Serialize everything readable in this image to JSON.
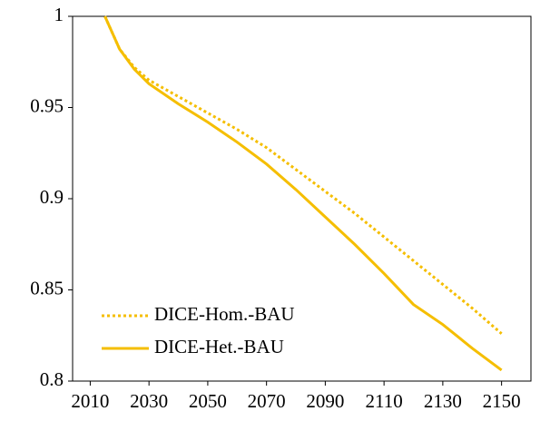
{
  "chart_data": {
    "type": "line",
    "x": [
      2015,
      2020,
      2025,
      2030,
      2040,
      2050,
      2060,
      2070,
      2080,
      2090,
      2100,
      2110,
      2120,
      2130,
      2140,
      2150
    ],
    "series": [
      {
        "name": "DICE-Hom.-BAU",
        "color": "#f5be00",
        "linestyle": "dotted",
        "values": [
          1,
          0.982,
          0.972,
          0.965,
          0.956,
          0.947,
          0.938,
          0.928,
          0.916,
          0.904,
          0.892,
          0.879,
          0.866,
          0.853,
          0.84,
          0.826
        ]
      },
      {
        "name": "DICE-Het.-BAU",
        "color": "#f5be00",
        "linestyle": "solid",
        "values": [
          1,
          0.982,
          0.971,
          0.963,
          0.952,
          0.942,
          0.931,
          0.919,
          0.905,
          0.89,
          0.875,
          0.859,
          0.842,
          0.831,
          0.818,
          0.806
        ]
      }
    ],
    "xlim": [
      2004,
      2160
    ],
    "xticks": [
      2010,
      2030,
      2050,
      2070,
      2090,
      2110,
      2130,
      2150
    ],
    "ylim": [
      0.8,
      1
    ],
    "yticks": [
      0.8,
      0.85,
      0.9,
      0.95,
      1
    ],
    "grid": false,
    "legend": "lower left"
  }
}
